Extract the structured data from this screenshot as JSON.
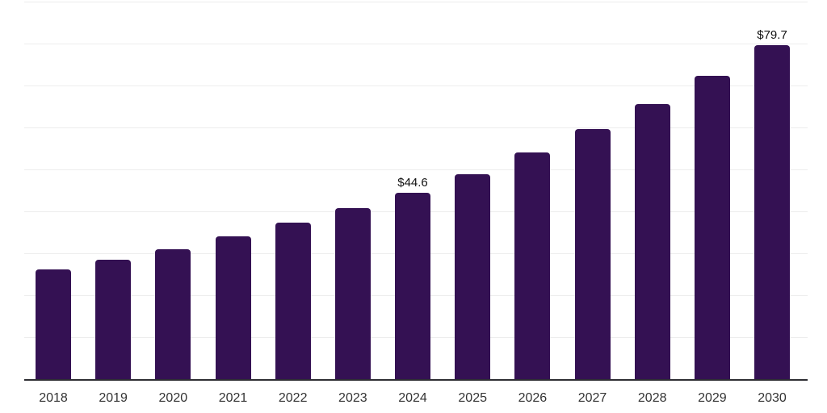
{
  "chart": {
    "bar_color": "#341153",
    "grid_color": "#ededed",
    "axis_color": "#2e2e33",
    "value_label_color": "#111111",
    "tick_label_color": "#333333",
    "background_color": "#ffffff"
  },
  "chart_data": {
    "type": "bar",
    "title": "",
    "xlabel": "",
    "ylabel": "",
    "categories": [
      "2018",
      "2019",
      "2020",
      "2021",
      "2022",
      "2023",
      "2024",
      "2025",
      "2026",
      "2027",
      "2028",
      "2029",
      "2030"
    ],
    "values": [
      26.3,
      28.5,
      31.1,
      34.1,
      37.4,
      40.8,
      44.6,
      49.0,
      54.1,
      59.7,
      65.6,
      72.3,
      79.7
    ],
    "data_labels": [
      {
        "category": "2024",
        "label": "$44.6"
      },
      {
        "category": "2030",
        "label": "$79.7"
      }
    ],
    "currency_prefix": "$",
    "ylim": [
      0,
      90
    ],
    "gridline_step": 10,
    "grid": "horizontal",
    "y_axis_labels_visible": false,
    "legend": "none"
  }
}
